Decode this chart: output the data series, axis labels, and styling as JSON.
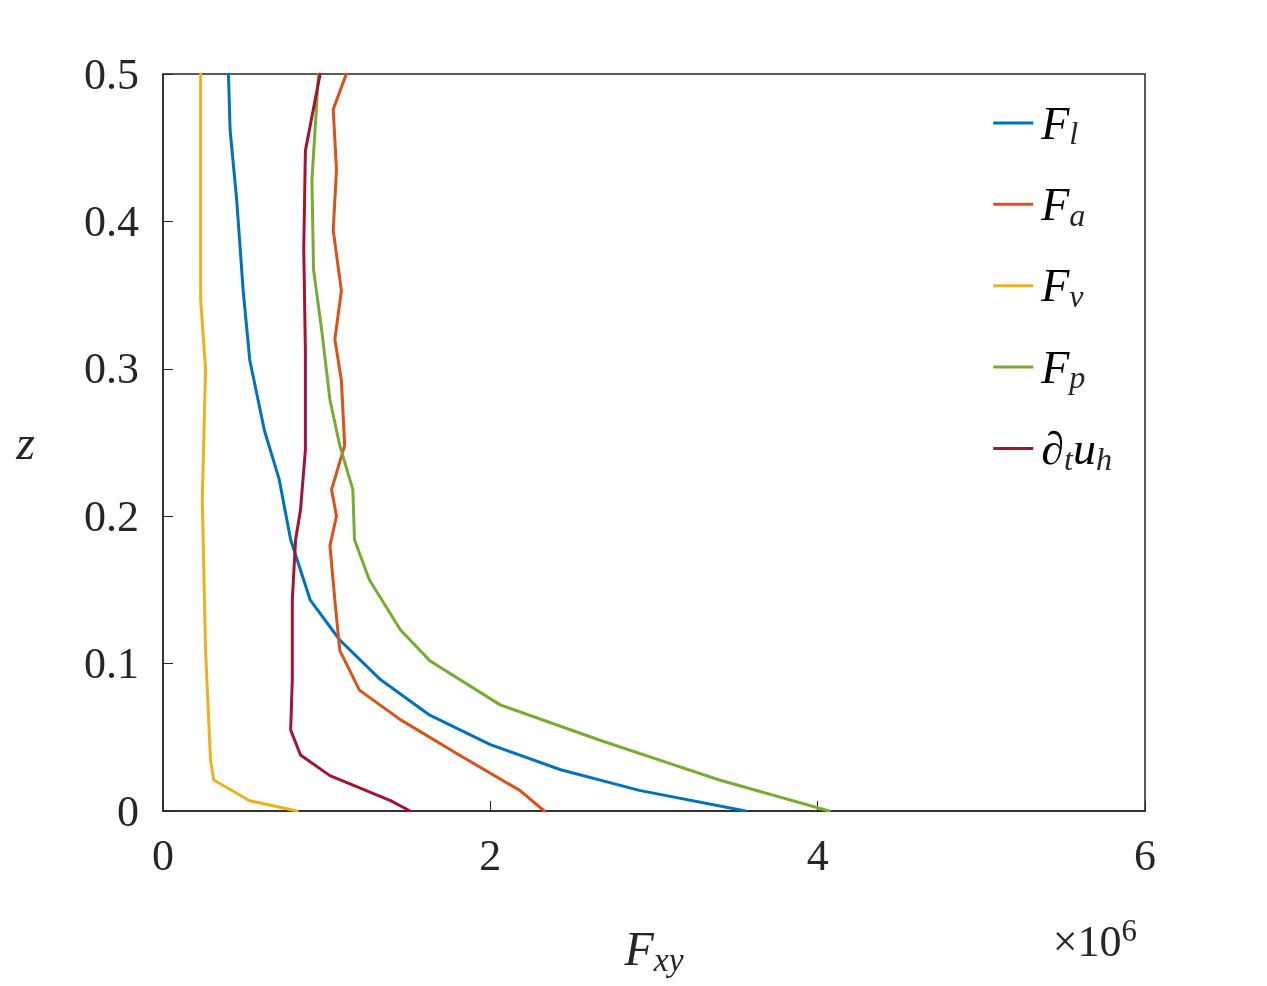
{
  "chart_data": {
    "type": "line",
    "xlabel": "F$_{xy}$",
    "ylabel": "z",
    "annotations": [
      "×10$^{6}$"
    ],
    "xlim": [
      0,
      6
    ],
    "xticks": [
      0,
      2,
      4,
      6
    ],
    "ylim": [
      0,
      0.5
    ],
    "yticks": [
      0,
      0.1,
      0.2,
      0.3,
      0.4,
      0.5
    ],
    "legend": "top right",
    "marker": "none",
    "line_style": "solid",
    "series": [
      {
        "name": "F$_{l}$",
        "color": "#0072bd",
        "x": [
          3.56,
          2.91,
          2.43,
          2.0,
          1.63,
          1.33,
          1.08,
          0.9,
          0.78,
          0.71,
          0.62,
          0.53,
          0.49,
          0.45,
          0.41,
          0.4
        ],
        "values": [
          0,
          0.014,
          0.028,
          0.045,
          0.065,
          0.089,
          0.116,
          0.143,
          0.184,
          0.225,
          0.258,
          0.306,
          0.353,
          0.415,
          0.462,
          0.5
        ]
      },
      {
        "name": "F$_{a}$",
        "color": "#d95319",
        "x": [
          2.33,
          2.18,
          1.81,
          1.45,
          1.2,
          1.08,
          1.05,
          1.02,
          1.06,
          1.03,
          1.11,
          1.09,
          1.05,
          1.09,
          1.04,
          1.06,
          1.04,
          1.12
        ],
        "values": [
          0,
          0.014,
          0.038,
          0.062,
          0.082,
          0.109,
          0.143,
          0.18,
          0.2,
          0.218,
          0.248,
          0.292,
          0.32,
          0.353,
          0.394,
          0.435,
          0.476,
          0.5
        ]
      },
      {
        "name": "F$_{v}$",
        "color": "#edb120",
        "x": [
          0.82,
          0.53,
          0.31,
          0.29,
          0.26,
          0.24,
          0.26,
          0.23,
          0.23,
          0.23
        ],
        "values": [
          0,
          0.007,
          0.021,
          0.035,
          0.109,
          0.211,
          0.3,
          0.347,
          0.415,
          0.5
        ]
      },
      {
        "name": "F$_{p}$",
        "color": "#77ac30",
        "x": [
          4.07,
          3.4,
          2.67,
          2.06,
          1.63,
          1.45,
          1.26,
          1.17,
          1.16,
          1.08,
          1.02,
          0.97,
          0.92,
          0.91,
          0.95
        ],
        "values": [
          0,
          0.021,
          0.048,
          0.072,
          0.102,
          0.123,
          0.157,
          0.184,
          0.218,
          0.248,
          0.279,
          0.326,
          0.367,
          0.428,
          0.5
        ]
      },
      {
        "name": "∂$_{t}$u$_{h}$",
        "color": "#a2142f",
        "x": [
          1.51,
          1.39,
          1.02,
          0.84,
          0.78,
          0.79,
          0.79,
          0.81,
          0.84,
          0.87,
          0.87,
          0.86,
          0.87,
          0.96
        ],
        "values": [
          0,
          0.007,
          0.024,
          0.038,
          0.055,
          0.089,
          0.143,
          0.184,
          0.204,
          0.245,
          0.313,
          0.381,
          0.448,
          0.5
        ]
      }
    ]
  }
}
